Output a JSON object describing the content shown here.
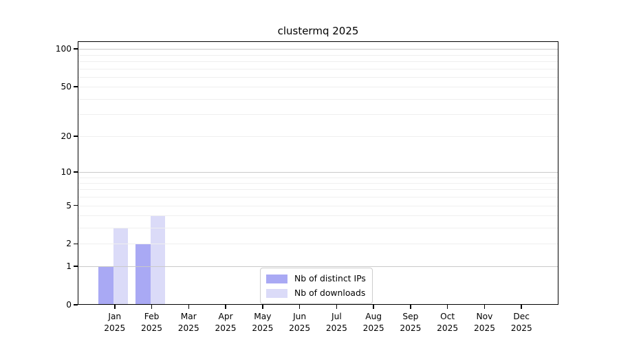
{
  "title": "clustermq 2025",
  "colors": {
    "distinct_ips_bar": "#a9a9f4",
    "downloads_bar": "#dbdbf8",
    "grid_major": "#c9c9c9",
    "grid_minor": "#efefef",
    "axis": "#000000",
    "legend_border": "#cccccc"
  },
  "legend": {
    "items": [
      {
        "label": "Nb of distinct IPs"
      },
      {
        "label": "Nb of downloads"
      }
    ]
  },
  "chart_data": {
    "type": "bar",
    "title": "clustermq 2025",
    "categories": [
      "Jan 2025",
      "Feb 2025",
      "Mar 2025",
      "Apr 2025",
      "May 2025",
      "Jun 2025",
      "Jul 2025",
      "Aug 2025",
      "Sep 2025",
      "Oct 2025",
      "Nov 2025",
      "Dec 2025"
    ],
    "series": [
      {
        "name": "Nb of distinct IPs",
        "color": "#a9a9f4",
        "values": [
          1,
          2,
          0,
          0,
          0,
          0,
          0,
          0,
          0,
          0,
          0,
          0
        ]
      },
      {
        "name": "Nb of downloads",
        "color": "#dbdbf8",
        "values": [
          3,
          4,
          0,
          0,
          0,
          0,
          0,
          0,
          0,
          0,
          0,
          0
        ]
      }
    ],
    "xlabel": "",
    "ylabel": "",
    "y_scale": "log10(1+y)",
    "ylim": [
      0,
      115
    ],
    "y_ticks": [
      0,
      1,
      2,
      5,
      10,
      20,
      50,
      100
    ],
    "grid_values_major": [
      1,
      10,
      100
    ],
    "grid_values_minor": [
      2,
      3,
      4,
      5,
      6,
      7,
      8,
      9,
      20,
      30,
      40,
      50,
      60,
      70,
      80,
      90
    ],
    "grid": "horizontal",
    "legend_position": "lower center"
  }
}
